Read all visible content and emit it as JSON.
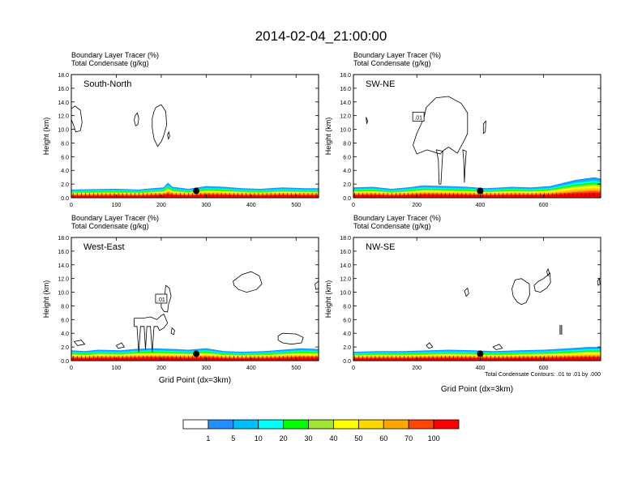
{
  "title": "2014-02-04_21:00:00",
  "chart_data": [
    {
      "type": "area",
      "panel_label": "South-North",
      "header_lines": [
        "Boundary Layer Tracer   (%)",
        "Total Condensate   (g/kg)"
      ],
      "ylabel": "Height (km)",
      "xlabel": "",
      "xlim": [
        0,
        550
      ],
      "ylim": [
        0,
        18
      ],
      "x_ticks": [
        0,
        100,
        200,
        300,
        400,
        500
      ],
      "y_ticks": [
        "0.0",
        "2.0",
        "4.0",
        "6.0",
        "8.0",
        "10.0",
        "12.0",
        "14.0",
        "16.0",
        "18.0"
      ],
      "contour_label": "",
      "footnote": "",
      "marker": {
        "x": 278,
        "y": 1.0
      },
      "tracer_top_km": [
        [
          0,
          1.2
        ],
        [
          50,
          1.25
        ],
        [
          100,
          1.3
        ],
        [
          150,
          1.2
        ],
        [
          180,
          1.4
        ],
        [
          205,
          1.5
        ],
        [
          215,
          2.2
        ],
        [
          225,
          1.6
        ],
        [
          260,
          1.3
        ],
        [
          300,
          1.7
        ],
        [
          340,
          1.6
        ],
        [
          380,
          1.4
        ],
        [
          420,
          1.3
        ],
        [
          470,
          1.5
        ],
        [
          520,
          1.4
        ],
        [
          550,
          1.4
        ]
      ],
      "cloud_outlines": [
        [
          [
            0,
            13.0
          ],
          [
            8,
            13.4
          ],
          [
            20,
            12.8
          ],
          [
            24,
            11.0
          ],
          [
            20,
            9.8
          ],
          [
            10,
            9.6
          ],
          [
            4,
            10.8
          ],
          [
            0,
            11.4
          ]
        ],
        [
          [
            188,
            13.2
          ],
          [
            200,
            13.6
          ],
          [
            210,
            12.6
          ],
          [
            212,
            10.6
          ],
          [
            205,
            9.0
          ],
          [
            200,
            8.2
          ],
          [
            192,
            7.5
          ],
          [
            184,
            8.6
          ],
          [
            180,
            10.2
          ],
          [
            180,
            11.6
          ],
          [
            184,
            12.6
          ]
        ],
        [
          [
            142,
            12.0
          ],
          [
            147,
            12.4
          ],
          [
            150,
            11.6
          ],
          [
            148,
            10.7
          ],
          [
            143,
            10.5
          ],
          [
            140,
            11.3
          ]
        ],
        [
          [
            214,
            9.2
          ],
          [
            217,
            9.6
          ],
          [
            219,
            9.0
          ],
          [
            216,
            8.6
          ]
        ]
      ]
    },
    {
      "type": "area",
      "panel_label": "SW-NE",
      "header_lines": [
        "Boundary Layer Tracer   (%)",
        "Total Condensate   (g/kg)"
      ],
      "ylabel": "Height (km)",
      "xlabel": "",
      "xlim": [
        0,
        780
      ],
      "ylim": [
        0,
        18
      ],
      "x_ticks": [
        0,
        200,
        400,
        600
      ],
      "y_ticks": [
        "0.0",
        "2.0",
        "4.0",
        "6.0",
        "8.0",
        "10.0",
        "12.0",
        "14.0",
        "16.0",
        "18.0"
      ],
      "contour_label": ".01",
      "contour_label_pos": [
        205,
        11.8
      ],
      "footnote": "",
      "marker": {
        "x": 400,
        "y": 1.0
      },
      "tracer_top_km": [
        [
          0,
          1.5
        ],
        [
          60,
          1.6
        ],
        [
          120,
          1.3
        ],
        [
          170,
          1.5
        ],
        [
          220,
          1.8
        ],
        [
          300,
          1.7
        ],
        [
          360,
          1.6
        ],
        [
          420,
          1.4
        ],
        [
          500,
          1.6
        ],
        [
          560,
          1.5
        ],
        [
          620,
          1.7
        ],
        [
          700,
          2.6
        ],
        [
          760,
          3.0
        ],
        [
          780,
          2.8
        ]
      ],
      "cloud_outlines": [
        [
          [
            230,
            13.2
          ],
          [
            260,
            14.6
          ],
          [
            300,
            14.8
          ],
          [
            340,
            13.8
          ],
          [
            360,
            12.4
          ],
          [
            360,
            9.4
          ],
          [
            352,
            8.6
          ],
          [
            328,
            6.5
          ],
          [
            300,
            7.4
          ],
          [
            284,
            6.9
          ],
          [
            274,
            6.4
          ],
          [
            232,
            7.0
          ],
          [
            200,
            6.4
          ],
          [
            188,
            7.7
          ],
          [
            200,
            9.4
          ],
          [
            222,
            11.6
          ]
        ],
        [
          [
            262,
            7.0
          ],
          [
            268,
            5.5
          ],
          [
            270,
            2.0
          ],
          [
            276,
            2.0
          ],
          [
            282,
            6.8
          ]
        ],
        [
          [
            345,
            7.0
          ],
          [
            348,
            5.5
          ],
          [
            350,
            2.2
          ],
          [
            352,
            4.0
          ],
          [
            356,
            6.8
          ]
        ],
        [
          [
            40,
            11.8
          ],
          [
            45,
            11.2
          ],
          [
            42,
            10.8
          ]
        ],
        [
          [
            410,
            10.8
          ],
          [
            418,
            11.2
          ],
          [
            416,
            9.6
          ],
          [
            410,
            9.4
          ]
        ]
      ]
    },
    {
      "type": "area",
      "panel_label": "West-East",
      "header_lines": [
        "Boundary Layer Tracer   (%)",
        "Total Condensate   (g/kg)"
      ],
      "ylabel": "Height (km)",
      "xlabel": "Grid Point (dx=3km)",
      "xlim": [
        0,
        550
      ],
      "ylim": [
        0,
        18
      ],
      "x_ticks": [
        0,
        100,
        200,
        300,
        400,
        500
      ],
      "y_ticks": [
        "0.0",
        "2.0",
        "4.0",
        "6.0",
        "8.0",
        "10.0",
        "12.0",
        "14.0",
        "16.0",
        "18.0"
      ],
      "contour_label": ".01",
      "contour_label_pos": [
        200,
        9.0
      ],
      "footnote": "",
      "marker": {
        "x": 278,
        "y": 1.0
      },
      "tracer_top_km": [
        [
          0,
          1.5
        ],
        [
          30,
          1.4
        ],
        [
          60,
          1.6
        ],
        [
          110,
          1.5
        ],
        [
          140,
          1.7
        ],
        [
          180,
          1.8
        ],
        [
          230,
          1.7
        ],
        [
          260,
          1.6
        ],
        [
          300,
          1.8
        ],
        [
          340,
          1.4
        ],
        [
          380,
          1.3
        ],
        [
          430,
          1.4
        ],
        [
          470,
          1.6
        ],
        [
          510,
          1.8
        ],
        [
          550,
          1.7
        ]
      ],
      "cloud_outlines": [
        [
          [
            140,
            6.2
          ],
          [
            140,
            5.0
          ],
          [
            146,
            5.0
          ],
          [
            150,
            1.2
          ],
          [
            154,
            5.0
          ],
          [
            162,
            5.0
          ],
          [
            165,
            1.6
          ],
          [
            168,
            5.0
          ],
          [
            176,
            5.0
          ],
          [
            180,
            1.2
          ],
          [
            184,
            5.0
          ],
          [
            192,
            5.0
          ],
          [
            196,
            4.4
          ],
          [
            206,
            4.8
          ],
          [
            214,
            5.5
          ],
          [
            206,
            6.8
          ],
          [
            200,
            6.6
          ],
          [
            190,
            6.0
          ],
          [
            176,
            6.4
          ],
          [
            160,
            6.2
          ]
        ],
        [
          [
            200,
            8.6
          ],
          [
            208,
            9.6
          ],
          [
            210,
            11.0
          ],
          [
            218,
            10.6
          ],
          [
            222,
            9.4
          ],
          [
            216,
            8.2
          ],
          [
            214,
            7.1
          ],
          [
            206,
            7.2
          ],
          [
            200,
            7.8
          ]
        ],
        [
          [
            360,
            11.6
          ],
          [
            380,
            12.6
          ],
          [
            400,
            13.0
          ],
          [
            418,
            12.4
          ],
          [
            424,
            11.2
          ],
          [
            412,
            10.4
          ],
          [
            390,
            10.0
          ],
          [
            372,
            10.4
          ],
          [
            362,
            11.0
          ]
        ],
        [
          [
            460,
            3.6
          ],
          [
            470,
            4.0
          ],
          [
            500,
            3.9
          ],
          [
            516,
            3.4
          ],
          [
            512,
            2.6
          ],
          [
            490,
            2.4
          ],
          [
            470,
            2.6
          ],
          [
            460,
            3.0
          ]
        ],
        [
          [
            224,
            4.8
          ],
          [
            230,
            4.4
          ],
          [
            228,
            3.8
          ],
          [
            222,
            4.0
          ]
        ],
        [
          [
            6,
            2.8
          ],
          [
            22,
            3.0
          ],
          [
            30,
            2.4
          ],
          [
            14,
            2.2
          ]
        ],
        [
          [
            100,
            2.2
          ],
          [
            112,
            2.6
          ],
          [
            118,
            2.0
          ],
          [
            104,
            1.8
          ]
        ],
        [
          [
            542,
            11.2
          ],
          [
            550,
            11.6
          ],
          [
            550,
            10.6
          ],
          [
            544,
            10.4
          ]
        ]
      ]
    },
    {
      "type": "area",
      "panel_label": "NW-SE",
      "header_lines": [
        "Boundary Layer Tracer   (%)",
        "Total Condensate   (g/kg)"
      ],
      "ylabel": "Height (km)",
      "xlabel": "Grid Point (dx=3km)",
      "xlim": [
        0,
        780
      ],
      "ylim": [
        0,
        18
      ],
      "x_ticks": [
        0,
        200,
        400,
        600
      ],
      "y_ticks": [
        "0.0",
        "2.0",
        "4.0",
        "6.0",
        "8.0",
        "10.0",
        "12.0",
        "14.0",
        "16.0",
        "18.0"
      ],
      "contour_label": "",
      "footnote": "Total Condensate Contours: .01 to .01 by .000",
      "marker": {
        "x": 400,
        "y": 1.0
      },
      "tracer_top_km": [
        [
          0,
          1.3
        ],
        [
          80,
          1.4
        ],
        [
          160,
          1.4
        ],
        [
          240,
          1.5
        ],
        [
          300,
          1.6
        ],
        [
          380,
          1.5
        ],
        [
          440,
          1.4
        ],
        [
          520,
          1.5
        ],
        [
          600,
          1.6
        ],
        [
          680,
          1.8
        ],
        [
          740,
          2.0
        ],
        [
          780,
          2.0
        ]
      ],
      "cloud_outlines": [
        [
          [
            500,
            10.5
          ],
          [
            510,
            11.8
          ],
          [
            530,
            12.0
          ],
          [
            555,
            11.2
          ],
          [
            556,
            9.6
          ],
          [
            545,
            8.5
          ],
          [
            530,
            8.2
          ],
          [
            516,
            8.6
          ],
          [
            504,
            9.4
          ]
        ],
        [
          [
            570,
            11.0
          ],
          [
            584,
            11.6
          ],
          [
            600,
            12.0
          ],
          [
            620,
            12.8
          ],
          [
            622,
            11.4
          ],
          [
            610,
            10.6
          ],
          [
            590,
            10.0
          ],
          [
            574,
            10.2
          ]
        ],
        [
          [
            610,
            13.0
          ],
          [
            614,
            13.4
          ],
          [
            618,
            12.8
          ],
          [
            614,
            12.4
          ]
        ],
        [
          [
            350,
            10.2
          ],
          [
            360,
            10.6
          ],
          [
            364,
            9.8
          ],
          [
            356,
            9.4
          ]
        ],
        [
          [
            230,
            2.2
          ],
          [
            240,
            2.6
          ],
          [
            250,
            2.0
          ],
          [
            238,
            1.8
          ]
        ],
        [
          [
            440,
            2.0
          ],
          [
            460,
            2.4
          ],
          [
            470,
            1.8
          ],
          [
            450,
            1.6
          ]
        ],
        [
          [
            770,
            11.6
          ],
          [
            776,
            12.0
          ],
          [
            778,
            11.2
          ],
          [
            772,
            11.0
          ]
        ]
      ],
      "vertical_marks": [
        [
          652,
          3.8,
          5.2
        ],
        [
          657,
          3.8,
          5.2
        ]
      ]
    }
  ],
  "colorbar": {
    "labels": [
      "1",
      "5",
      "10",
      "20",
      "30",
      "40",
      "50",
      "60",
      "70",
      "100"
    ],
    "colors": [
      "#ffffff",
      "#1e90ff",
      "#00bfff",
      "#00ffff",
      "#00ff00",
      "#a0e632",
      "#ffff00",
      "#ffd700",
      "#ffa500",
      "#ff4500",
      "#ff0000"
    ]
  }
}
